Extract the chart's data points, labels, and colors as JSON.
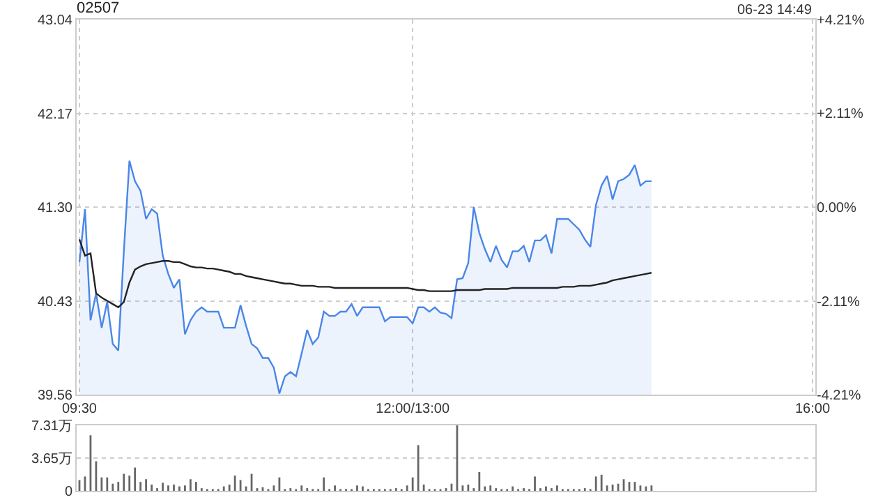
{
  "chart_data": [
    {
      "type": "line",
      "title": "02507",
      "annotations": [
        "06-23 14:49"
      ],
      "categories": [
        "09:30",
        null,
        null,
        null,
        null,
        null,
        null,
        null,
        null,
        null,
        null,
        null,
        null,
        null,
        null,
        null,
        null,
        null,
        null,
        null,
        null,
        null,
        null,
        null,
        null,
        null,
        null,
        null,
        null,
        null,
        null,
        null,
        null,
        null,
        null,
        null,
        null,
        null,
        null,
        null,
        null,
        null,
        null,
        null,
        null,
        null,
        null,
        null,
        null,
        null,
        null,
        null,
        null,
        null,
        null,
        null,
        null,
        null,
        null,
        null,
        "12:00/13:00",
        null,
        null,
        null,
        null,
        null,
        null,
        null,
        null,
        null,
        null,
        null,
        null,
        null,
        null,
        null,
        null,
        null,
        null,
        null,
        null,
        null,
        null,
        null,
        null,
        null,
        null,
        null,
        null,
        null,
        null,
        null,
        null,
        null,
        null,
        null,
        null,
        null,
        null,
        null,
        null,
        null,
        null,
        null,
        null,
        null,
        null,
        null,
        null,
        null,
        null,
        null,
        null,
        null,
        null,
        null,
        null,
        null,
        null,
        null,
        null,
        null,
        null,
        null,
        null,
        null,
        null,
        null,
        null,
        null,
        null,
        null,
        "16:00"
      ],
      "ylim": [
        39.56,
        43.04
      ],
      "yticks": [
        39.56,
        40.43,
        {
          "value": 41.3,
          "label": "41.30"
        },
        42.17,
        43.04
      ],
      "y2lim": [
        -4.21,
        4.21
      ],
      "y2ticks": [
        {
          "value": -4.21,
          "label": "-4.21%"
        },
        {
          "value": -2.11,
          "label": "-2.11%"
        },
        {
          "value": 0,
          "label": "0.00%"
        },
        {
          "value": 2.11,
          "label": "+2.11%"
        },
        {
          "value": 4.21,
          "label": "+4.21%"
        }
      ],
      "grid": true,
      "series": [
        {
          "type": "area",
          "color": "#4a86e8",
          "values": [
            40.79,
            41.28,
            40.25,
            40.5,
            40.18,
            40.42,
            40.03,
            39.97,
            40.89,
            41.73,
            41.54,
            41.45,
            41.19,
            41.28,
            41.24,
            40.85,
            40.68,
            40.55,
            40.63,
            40.12,
            40.25,
            40.33,
            40.37,
            40.33,
            40.33,
            40.33,
            40.18,
            40.18,
            40.18,
            40.39,
            40.2,
            40.03,
            39.99,
            39.9,
            39.9,
            39.81,
            39.57,
            39.73,
            39.77,
            39.73,
            39.94,
            40.16,
            40.03,
            40.09,
            40.33,
            40.29,
            40.29,
            40.33,
            40.33,
            40.4,
            40.29,
            40.37,
            40.37,
            40.37,
            40.37,
            40.24,
            40.28,
            40.28,
            40.28,
            40.28,
            40.22,
            40.37,
            40.37,
            40.33,
            40.37,
            40.32,
            40.31,
            40.27,
            40.63,
            40.64,
            40.78,
            41.3,
            41.06,
            40.91,
            40.79,
            40.94,
            40.81,
            40.74,
            40.89,
            40.89,
            40.94,
            40.79,
            40.99,
            40.99,
            41.04,
            40.87,
            41.19,
            41.19,
            41.19,
            41.14,
            41.09,
            41.0,
            40.93,
            41.32,
            41.5,
            41.59,
            41.37,
            41.54,
            41.56,
            41.6,
            41.69,
            41.5,
            41.54,
            41.54,
            null,
            null,
            null,
            null,
            null,
            null,
            null,
            null,
            null,
            null,
            null,
            null,
            null,
            null,
            null,
            null,
            null,
            null,
            null,
            null,
            null,
            null,
            null,
            null,
            null,
            null,
            null,
            null,
            null
          ]
        },
        {
          "type": "line",
          "color": "#222222",
          "values": [
            41.0,
            40.85,
            40.87,
            40.5,
            40.46,
            40.43,
            40.4,
            40.37,
            40.42,
            40.6,
            40.72,
            40.75,
            40.77,
            40.78,
            40.79,
            40.8,
            40.8,
            40.79,
            40.79,
            40.77,
            40.75,
            40.74,
            40.74,
            40.73,
            40.73,
            40.72,
            40.71,
            40.7,
            40.68,
            40.68,
            40.66,
            40.65,
            40.64,
            40.63,
            40.62,
            40.61,
            40.6,
            40.59,
            40.59,
            40.58,
            40.57,
            40.57,
            40.57,
            40.56,
            40.56,
            40.56,
            40.55,
            40.55,
            40.55,
            40.55,
            40.55,
            40.55,
            40.55,
            40.55,
            40.55,
            40.55,
            40.55,
            40.55,
            40.55,
            40.55,
            40.54,
            40.53,
            40.53,
            40.52,
            40.52,
            40.52,
            40.52,
            40.52,
            40.53,
            40.53,
            40.53,
            40.53,
            40.53,
            40.54,
            40.54,
            40.54,
            40.54,
            40.54,
            40.55,
            40.55,
            40.55,
            40.55,
            40.55,
            40.55,
            40.55,
            40.55,
            40.55,
            40.56,
            40.56,
            40.56,
            40.57,
            40.57,
            40.57,
            40.58,
            40.59,
            40.6,
            40.62,
            40.63,
            40.64,
            40.65,
            40.66,
            40.67,
            40.68,
            40.69,
            null,
            null,
            null,
            null,
            null,
            null,
            null,
            null,
            null,
            null,
            null,
            null,
            null,
            null,
            null,
            null,
            null,
            null,
            null,
            null,
            null,
            null,
            null,
            null,
            null,
            null,
            null,
            null,
            null
          ]
        }
      ]
    },
    {
      "type": "bar",
      "color": "#666666",
      "tick_labels": "y",
      "grid": "y",
      "categories": [
        null,
        null,
        null,
        null,
        null,
        null,
        null,
        null,
        null,
        null,
        null,
        null,
        null,
        null,
        null,
        null,
        null,
        null,
        null,
        null,
        null,
        null,
        null,
        null,
        null,
        null,
        null,
        null,
        null,
        null,
        null,
        null,
        null,
        null,
        null,
        null,
        null,
        null,
        null,
        null,
        null,
        null,
        null,
        null,
        null,
        null,
        null,
        null,
        null,
        null,
        null,
        null,
        null,
        null,
        null,
        null,
        null,
        null,
        null,
        null,
        null,
        null,
        null,
        null,
        null,
        null,
        null,
        null,
        null,
        null,
        null,
        null,
        null,
        null,
        null,
        null,
        null,
        null,
        null,
        null,
        null,
        null,
        null,
        null,
        null,
        null,
        null,
        null,
        null,
        null,
        null,
        null,
        null,
        null,
        null,
        null,
        null,
        null,
        null,
        null,
        null,
        null,
        null,
        null,
        null,
        null,
        null,
        null,
        null,
        null,
        null,
        null,
        null,
        null,
        null,
        null,
        null,
        null,
        null,
        null,
        null,
        null,
        null,
        null,
        null,
        null,
        null,
        null,
        null,
        null,
        null,
        null,
        null
      ],
      "ylim": [
        0,
        7.31
      ],
      "yticks": [
        0,
        {
          "value": 3.65,
          "label": "3.65万"
        },
        {
          "value": 7.31,
          "label": "7.31万"
        }
      ],
      "values": [
        1.2,
        1.6,
        6.2,
        3.3,
        1.5,
        1.5,
        0.8,
        1.0,
        1.9,
        1.7,
        2.6,
        1.0,
        1.3,
        0.7,
        0.3,
        0.9,
        0.6,
        0.7,
        0.5,
        0.6,
        1.3,
        1.0,
        0.3,
        0.2,
        0.2,
        0.2,
        0.5,
        0.7,
        1.7,
        1.2,
        0.5,
        1.9,
        0.3,
        0.4,
        0.2,
        0.6,
        1.5,
        0.2,
        0.3,
        0.2,
        0.6,
        0.3,
        0.2,
        0.2,
        1.5,
        0.2,
        0.6,
        0.2,
        0.2,
        0.2,
        0.6,
        0.5,
        0.2,
        0.2,
        0.2,
        0.2,
        0.2,
        0.3,
        0.2,
        0.6,
        1.5,
        5.1,
        0.7,
        0.2,
        0.2,
        0.2,
        0.3,
        0.8,
        7.3,
        0.6,
        0.7,
        0.3,
        2.1,
        0.5,
        0.6,
        0.3,
        0.2,
        0.2,
        0.5,
        0.2,
        0.3,
        0.2,
        1.6,
        0.3,
        0.5,
        0.3,
        0.6,
        0.2,
        0.2,
        0.2,
        0.2,
        0.3,
        0.2,
        1.6,
        1.8,
        0.6,
        0.7,
        0.8,
        1.3,
        1.0,
        1.0,
        0.6,
        0.5,
        0.6,
        null,
        null,
        null,
        null,
        null,
        null,
        null,
        null,
        null,
        null,
        null,
        null,
        null,
        null,
        null,
        null,
        null,
        null,
        null,
        null,
        null,
        null,
        null,
        null,
        null,
        null,
        null,
        null,
        null
      ]
    }
  ]
}
